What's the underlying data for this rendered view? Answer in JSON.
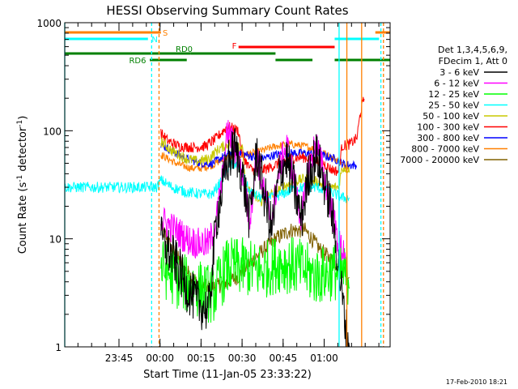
{
  "chart_data": {
    "type": "line",
    "title": "HESSI Observing Summary Count Rates",
    "xlabel": "Start Time (11-Jan-05 23:33:22)",
    "ylabel": "Count Rate (s⁻¹ detector⁻¹)",
    "ylabel_main": "Count Rate (s",
    "ylabel_sup1": "-1",
    "ylabel_mid": " detector",
    "ylabel_sup2": "-1",
    "ylabel_end": ")",
    "y_scale": "log",
    "ylim": [
      1,
      1000
    ],
    "xlim_minutes": [
      -13,
      75
    ],
    "x_ticks": [
      {
        "label": "23:45",
        "minutes": 12
      },
      {
        "label": "00:00",
        "minutes": 27
      },
      {
        "label": "00:15",
        "minutes": 42
      },
      {
        "label": "00:30",
        "minutes": 57
      },
      {
        "label": "00:45",
        "minutes": 72
      },
      {
        "label": "01:00",
        "minutes": 87
      }
    ],
    "y_ticks": [
      {
        "label": "1",
        "value": 1
      },
      {
        "label": "10",
        "value": 10
      },
      {
        "label": "100",
        "value": 100
      },
      {
        "label": "1000",
        "value": 1000
      }
    ],
    "legend": {
      "position": "right",
      "header": [
        "Det 1,3,4,5,6,9,",
        "FDecim 1, Att 0"
      ],
      "entries": [
        {
          "label": "3 - 6 keV",
          "color": "#000000"
        },
        {
          "label": "6 - 12 keV",
          "color": "#ff00ff"
        },
        {
          "label": "12 - 25 keV",
          "color": "#00ff00"
        },
        {
          "label": "25 - 50 keV",
          "color": "#00ffff"
        },
        {
          "label": "50 - 100 keV",
          "color": "#c8c800"
        },
        {
          "label": "100 - 300 keV",
          "color": "#ff0000"
        },
        {
          "label": "300 - 800 keV",
          "color": "#0000ff"
        },
        {
          "label": "800 - 7000 keV",
          "color": "#ff8000"
        },
        {
          "label": "7000 - 20000 keV",
          "color": "#806000"
        }
      ]
    },
    "flags": [
      {
        "label": "S",
        "color": "#ff8000",
        "segments": [
          [
            -13,
            13
          ],
          [
            71,
            75
          ]
        ]
      },
      {
        "label": "N",
        "color": "#00ffff",
        "segments": [
          [
            -13,
            9.5
          ],
          [
            60,
            72
          ]
        ]
      },
      {
        "label": "F",
        "color": "#ff0000",
        "segments": [
          [
            34,
            60
          ]
        ]
      },
      {
        "label": "RD0",
        "color": "#008000",
        "segments": [
          [
            -13,
            21
          ],
          [
            21,
            44
          ]
        ]
      },
      {
        "label": "RD6",
        "color": "#008000",
        "segments": [
          [
            10,
            20
          ],
          [
            44,
            54
          ],
          [
            60,
            75
          ]
        ]
      }
    ],
    "verticals": [
      {
        "minutes": -13,
        "color": "#00ffff",
        "style": "solid"
      },
      {
        "minutes": 10.5,
        "color": "#00ffff",
        "style": "dashed"
      },
      {
        "minutes": 12.5,
        "color": "#ff8000",
        "style": "dashed"
      },
      {
        "minutes": 61.2,
        "color": "#00ffff",
        "style": "solid"
      },
      {
        "minutes": 63.3,
        "color": "#ff8000",
        "style": "solid"
      },
      {
        "minutes": 67.3,
        "color": "#ff8000",
        "style": "solid"
      },
      {
        "minutes": 72.5,
        "color": "#00ffff",
        "style": "dashed"
      },
      {
        "minutes": 73.2,
        "color": "#ff8000",
        "style": "dashed"
      }
    ],
    "series": [
      {
        "name": "3 - 6 keV",
        "color": "#000000",
        "noise": 0.45,
        "x_range": [
          13,
          64
        ],
        "x": [
          13,
          17,
          20,
          23,
          26,
          28,
          31,
          33,
          35,
          37,
          39,
          41,
          43,
          45,
          47,
          49,
          51,
          53,
          55,
          57,
          59,
          61,
          63,
          64
        ],
        "y": [
          10,
          6,
          3.5,
          2.5,
          2.2,
          15,
          50,
          70,
          40,
          15,
          65,
          25,
          12,
          40,
          55,
          30,
          15,
          40,
          60,
          35,
          20,
          6,
          1.5,
          1
        ]
      },
      {
        "name": "6 - 12 keV",
        "color": "#ff00ff",
        "noise": 0.3,
        "x_range": [
          13,
          63
        ],
        "x": [
          13,
          17,
          20,
          23,
          26,
          28,
          30,
          31,
          33,
          35,
          37,
          39,
          41,
          43,
          45,
          47,
          49,
          51,
          53,
          55,
          57,
          59,
          61,
          62,
          63
        ],
        "y": [
          15,
          12,
          10,
          9,
          9,
          15,
          45,
          100,
          70,
          40,
          15,
          60,
          25,
          15,
          45,
          75,
          35,
          15,
          45,
          80,
          40,
          20,
          9,
          8,
          8
        ]
      },
      {
        "name": "12 - 25 keV",
        "color": "#00ff00",
        "noise": 0.55,
        "x_range": [
          13,
          64
        ],
        "x": [
          13,
          18,
          23,
          27,
          31,
          35,
          40,
          45,
          50,
          55,
          60,
          64
        ],
        "y": [
          5.5,
          4,
          3.5,
          3,
          5.5,
          5.5,
          5,
          6,
          5.5,
          4.5,
          5,
          4.5
        ]
      },
      {
        "name": "25 - 50 keV",
        "color": "#00ffff",
        "noise": 0.1,
        "x_range": [
          -13,
          64
        ],
        "x": [
          -13,
          9,
          10,
          12,
          13,
          16,
          20,
          24,
          27,
          29,
          31,
          33,
          35,
          37,
          40,
          43,
          46,
          49,
          52,
          55,
          58,
          61,
          62,
          64
        ],
        "y": [
          30,
          30,
          30,
          30,
          35,
          30,
          27,
          26,
          26,
          33,
          45,
          50,
          40,
          27,
          24,
          24,
          26,
          29,
          30,
          30,
          28,
          25,
          24,
          24
        ]
      },
      {
        "name": "50 - 100 keV",
        "color": "#c8c800",
        "noise": 0.1,
        "x_range": [
          13,
          64
        ],
        "x": [
          13,
          16,
          20,
          23,
          26,
          28,
          30,
          33,
          35,
          36,
          38,
          40,
          43,
          46,
          49,
          52,
          55,
          58,
          61,
          62,
          64
        ],
        "y": [
          80,
          65,
          55,
          52,
          55,
          65,
          72,
          80,
          70,
          30,
          25,
          22,
          26,
          30,
          34,
          36,
          34,
          30,
          30,
          45,
          45
        ]
      },
      {
        "name": "100 - 300 keV",
        "color": "#ff0000",
        "noise": 0.1,
        "x_range": [
          13,
          68
        ],
        "x": [
          13,
          15,
          18,
          22,
          25,
          28,
          31,
          34,
          35,
          37,
          39,
          42,
          45,
          48,
          51,
          54,
          57,
          59,
          61,
          62,
          64,
          66,
          67,
          68
        ],
        "y": [
          95,
          80,
          72,
          70,
          72,
          85,
          110,
          100,
          60,
          45,
          42,
          45,
          50,
          55,
          57,
          55,
          50,
          44,
          42,
          72,
          75,
          85,
          150,
          200
        ]
      },
      {
        "name": "300 - 800 keV",
        "color": "#0000ff",
        "noise": 0.08,
        "x_range": [
          13,
          66
        ],
        "x": [
          13,
          16,
          20,
          24,
          27,
          30,
          33,
          36,
          40,
          44,
          48,
          52,
          56,
          60,
          62,
          64,
          66
        ],
        "y": [
          75,
          65,
          55,
          50,
          50,
          58,
          65,
          60,
          55,
          60,
          62,
          62,
          60,
          55,
          50,
          48,
          48
        ]
      },
      {
        "name": "800 - 7000 keV",
        "color": "#ff8000",
        "noise": 0.07,
        "x_range": [
          13,
          64
        ],
        "x": [
          13,
          17,
          21,
          24,
          27,
          30,
          33,
          36,
          40,
          44,
          48,
          52,
          56,
          60,
          64
        ],
        "y": [
          60,
          50,
          45,
          45,
          48,
          55,
          60,
          60,
          65,
          72,
          75,
          72,
          65,
          55,
          45
        ]
      },
      {
        "name": "7000 - 20000 keV",
        "color": "#806000",
        "noise": 0.15,
        "x_range": [
          13,
          64
        ],
        "x": [
          13,
          16,
          20,
          24,
          28,
          31,
          34,
          36,
          40,
          44,
          48,
          52,
          56,
          60,
          64
        ],
        "y": [
          13,
          8,
          5,
          3.6,
          3.6,
          4,
          4.5,
          5.5,
          7.5,
          10,
          12,
          12,
          8,
          6,
          4.5
        ]
      }
    ]
  },
  "footer": {
    "timestamp": "17-Feb-2010 18:21"
  }
}
